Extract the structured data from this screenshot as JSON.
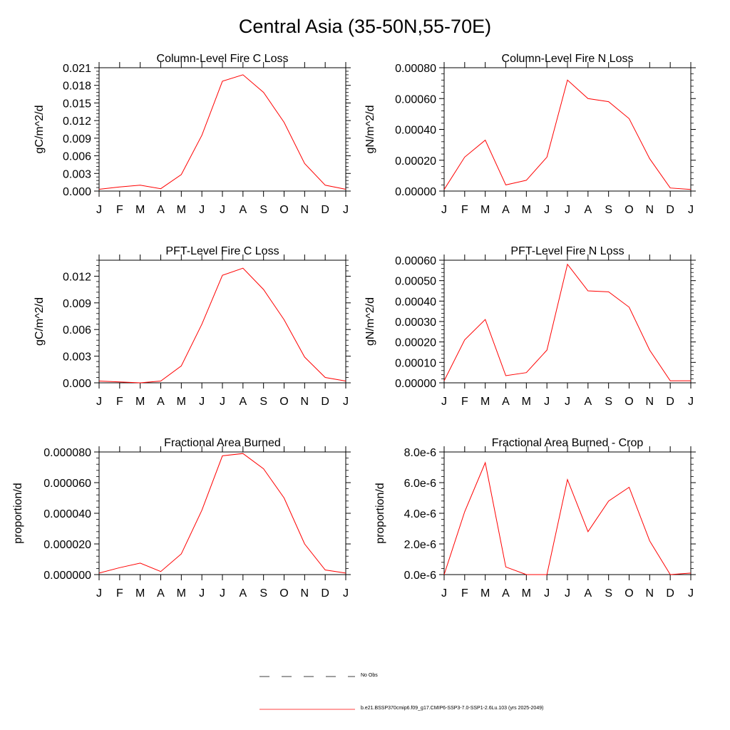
{
  "title": "Central Asia (35-50N,55-70E)",
  "colors": {
    "model_line": "#ff0000",
    "axis": "#000000",
    "obs_line": "#000000"
  },
  "legend": {
    "obs_label": "No Obs",
    "model_label": "b.e21.BSSP370cmip6.f09_g17.CMIP6-SSP3-7.0-SSP1-2.6Lu.103 (yrs 2025-2049)"
  },
  "chart_data": [
    {
      "type": "line",
      "title": "Column-Level Fire C Loss",
      "ylabel": "gC/m^2/d",
      "categories": [
        "J",
        "F",
        "M",
        "A",
        "M",
        "J",
        "J",
        "A",
        "S",
        "O",
        "N",
        "D",
        "J"
      ],
      "ylim": [
        0,
        0.021
      ],
      "yticks": [
        "0.000",
        "0.003",
        "0.006",
        "0.009",
        "0.012",
        "0.015",
        "0.018",
        "0.021"
      ],
      "series": [
        {
          "values": [
            0.0003,
            0.0007,
            0.001,
            0.0004,
            0.0028,
            0.0095,
            0.0187,
            0.0198,
            0.0168,
            0.0117,
            0.0047,
            0.001,
            0.0003
          ]
        }
      ]
    },
    {
      "type": "line",
      "title": "Column-Level Fire N Loss",
      "ylabel": "gN/m^2/d",
      "categories": [
        "J",
        "F",
        "M",
        "A",
        "M",
        "J",
        "J",
        "A",
        "S",
        "O",
        "N",
        "D",
        "J"
      ],
      "ylim": [
        0,
        0.0008
      ],
      "yticks": [
        "0.00000",
        "0.00020",
        "0.00040",
        "0.00060",
        "0.00080"
      ],
      "series": [
        {
          "values": [
            1e-05,
            0.00022,
            0.00033,
            4e-05,
            7e-05,
            0.00022,
            0.00072,
            0.0006,
            0.00058,
            0.00047,
            0.00021,
            2e-05,
            1e-05
          ]
        }
      ]
    },
    {
      "type": "line",
      "title": "PFT-Level Fire C Loss",
      "ylabel": "gC/m^2/d",
      "categories": [
        "J",
        "F",
        "M",
        "A",
        "M",
        "J",
        "J",
        "A",
        "S",
        "O",
        "N",
        "D",
        "J"
      ],
      "ylim": [
        0,
        0.0138
      ],
      "yticks": [
        "0.000",
        "0.003",
        "0.006",
        "0.009",
        "0.012"
      ],
      "series": [
        {
          "values": [
            0.0002,
            0.0001,
            0.0,
            0.0002,
            0.0019,
            0.0066,
            0.0121,
            0.0129,
            0.0105,
            0.0071,
            0.0029,
            0.0006,
            0.0002
          ]
        }
      ]
    },
    {
      "type": "line",
      "title": "PFT-Level Fire N Loss",
      "ylabel": "gN/m^2/d",
      "categories": [
        "J",
        "F",
        "M",
        "A",
        "M",
        "J",
        "J",
        "A",
        "S",
        "O",
        "N",
        "D",
        "J"
      ],
      "ylim": [
        0,
        0.0006
      ],
      "yticks": [
        "0.00000",
        "0.00010",
        "0.00020",
        "0.00030",
        "0.00040",
        "0.00050",
        "0.00060"
      ],
      "series": [
        {
          "values": [
            1e-05,
            0.00021,
            0.00031,
            3.5e-05,
            5e-05,
            0.00016,
            0.00058,
            0.00045,
            0.000445,
            0.00037,
            0.00016,
            1e-05,
            1e-05
          ]
        }
      ]
    },
    {
      "type": "line",
      "title": "Fractional Area Burned",
      "ylabel": "proportion/d",
      "categories": [
        "J",
        "F",
        "M",
        "A",
        "M",
        "J",
        "J",
        "A",
        "S",
        "O",
        "N",
        "D",
        "J"
      ],
      "ylim": [
        0,
        8e-05
      ],
      "yticks": [
        "0.000000",
        "0.000020",
        "0.000040",
        "0.000060",
        "0.000080"
      ],
      "series": [
        {
          "values": [
            1e-06,
            4.5e-06,
            7.5e-06,
            2e-06,
            1.35e-05,
            4.2e-05,
            7.75e-05,
            7.9e-05,
            6.9e-05,
            5e-05,
            2e-05,
            3e-06,
            1e-06
          ]
        }
      ]
    },
    {
      "type": "line",
      "title": "Fractional Area Burned - Crop",
      "ylabel": "proportion/d",
      "categories": [
        "J",
        "F",
        "M",
        "A",
        "M",
        "J",
        "J",
        "A",
        "S",
        "O",
        "N",
        "D",
        "J"
      ],
      "ylim": [
        0,
        8e-06
      ],
      "yticks": [
        "0.0e-6",
        "2.0e-6",
        "4.0e-6",
        "6.0e-6",
        "8.0e-6"
      ],
      "series": [
        {
          "values": [
            0.0,
            4.1e-06,
            7.3e-06,
            5e-07,
            0.0,
            0.0,
            6.2e-06,
            2.8e-06,
            4.8e-06,
            5.7e-06,
            2.2e-06,
            0.0,
            1e-07
          ]
        }
      ]
    }
  ]
}
